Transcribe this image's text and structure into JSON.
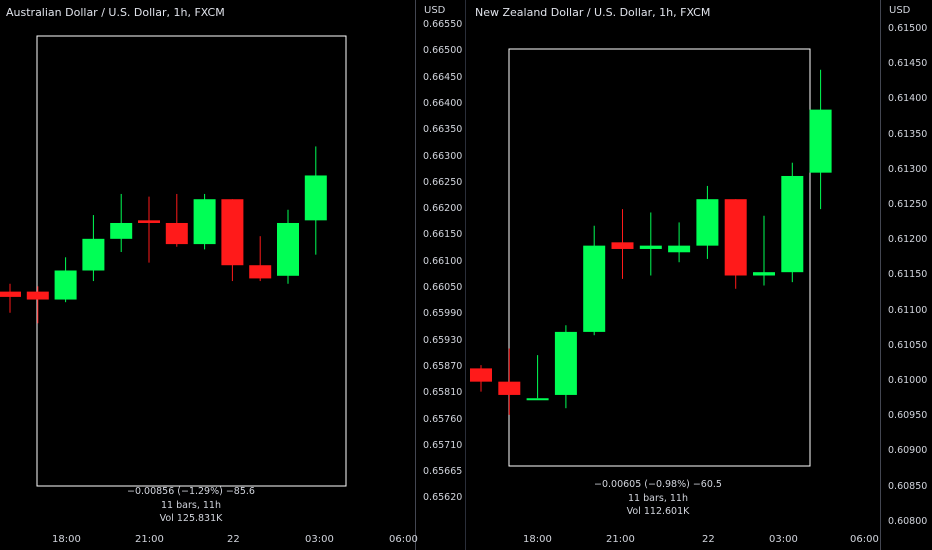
{
  "colors": {
    "up": "#00ff55",
    "down": "#ff1a1a",
    "range_box": "#ffffff",
    "background": "#000000"
  },
  "left_chart": {
    "title": "Australian Dollar / U.S. Dollar, 1h, FXCM",
    "currency": "USD",
    "price_ticks": [
      "0.66550",
      "0.66500",
      "0.66450",
      "0.66400",
      "0.66350",
      "0.66300",
      "0.66250",
      "0.66200",
      "0.66150",
      "0.66100",
      "0.66050",
      "0.65990",
      "0.65930",
      "0.65870",
      "0.65810",
      "0.65760",
      "0.65710",
      "0.65665",
      "0.65620"
    ],
    "time_ticks": [
      "18:00",
      "21:00",
      "22",
      "03:00",
      "06:00"
    ],
    "range_stats": {
      "change": "−0.00856 (−1.29%) −85.6",
      "bars": "11 bars, 11h",
      "volume": "Vol 125.831K"
    }
  },
  "right_chart": {
    "title": "New Zealand Dollar / U.S. Dollar, 1h, FXCM",
    "currency": "USD",
    "price_ticks": [
      "0.61500",
      "0.61450",
      "0.61400",
      "0.61350",
      "0.61300",
      "0.61250",
      "0.61200",
      "0.61150",
      "0.61100",
      "0.61050",
      "0.61000",
      "0.60950",
      "0.60900",
      "0.60850",
      "0.60800"
    ],
    "time_ticks": [
      "18:00",
      "21:00",
      "22",
      "03:00",
      "06:00"
    ],
    "range_stats": {
      "change": "−0.00605 (−0.98%) −60.5",
      "bars": "11 bars, 11h",
      "volume": "Vol 112.601K"
    }
  },
  "chart_data": [
    {
      "type": "candlestick",
      "title": "Australian Dollar / U.S. Dollar, 1h, FXCM",
      "ylabel": "USD",
      "ylim": [
        0.6562,
        0.6655
      ],
      "candles": [
        {
          "o": 0.66045,
          "h": 0.6606,
          "l": 0.66005,
          "c": 0.66035
        },
        {
          "o": 0.66045,
          "h": 0.66055,
          "l": 0.65985,
          "c": 0.6603
        },
        {
          "o": 0.6603,
          "h": 0.6611,
          "l": 0.66025,
          "c": 0.66085
        },
        {
          "o": 0.66085,
          "h": 0.6619,
          "l": 0.66065,
          "c": 0.66145
        },
        {
          "o": 0.66145,
          "h": 0.6623,
          "l": 0.6612,
          "c": 0.66175
        },
        {
          "o": 0.6618,
          "h": 0.66225,
          "l": 0.661,
          "c": 0.66175
        },
        {
          "o": 0.66175,
          "h": 0.6623,
          "l": 0.6613,
          "c": 0.66135
        },
        {
          "o": 0.66135,
          "h": 0.6623,
          "l": 0.66125,
          "c": 0.6622
        },
        {
          "o": 0.6622,
          "h": 0.6622,
          "l": 0.66065,
          "c": 0.66095
        },
        {
          "o": 0.66095,
          "h": 0.6615,
          "l": 0.66065,
          "c": 0.6607
        },
        {
          "o": 0.66075,
          "h": 0.662,
          "l": 0.6606,
          "c": 0.66175
        },
        {
          "o": 0.6618,
          "h": 0.6632,
          "l": 0.66115,
          "c": 0.66265
        }
      ]
    },
    {
      "type": "candlestick",
      "title": "New Zealand Dollar / U.S. Dollar, 1h, FXCM",
      "ylabel": "USD",
      "ylim": [
        0.6078,
        0.6152
      ],
      "candles": [
        {
          "o": 0.6101,
          "h": 0.61015,
          "l": 0.60975,
          "c": 0.6099
        },
        {
          "o": 0.6099,
          "h": 0.6104,
          "l": 0.6094,
          "c": 0.6097
        },
        {
          "o": 0.60965,
          "h": 0.6103,
          "l": 0.60965,
          "c": 0.60965
        },
        {
          "o": 0.6097,
          "h": 0.61075,
          "l": 0.6095,
          "c": 0.61065
        },
        {
          "o": 0.61065,
          "h": 0.61225,
          "l": 0.6106,
          "c": 0.61195
        },
        {
          "o": 0.612,
          "h": 0.6125,
          "l": 0.61145,
          "c": 0.6119
        },
        {
          "o": 0.6119,
          "h": 0.61245,
          "l": 0.6115,
          "c": 0.61195
        },
        {
          "o": 0.61185,
          "h": 0.6123,
          "l": 0.6117,
          "c": 0.61195
        },
        {
          "o": 0.61195,
          "h": 0.61285,
          "l": 0.61175,
          "c": 0.61265
        },
        {
          "o": 0.61265,
          "h": 0.61265,
          "l": 0.6113,
          "c": 0.6115
        },
        {
          "o": 0.6115,
          "h": 0.6124,
          "l": 0.61135,
          "c": 0.61155
        },
        {
          "o": 0.61155,
          "h": 0.6132,
          "l": 0.6114,
          "c": 0.613
        },
        {
          "o": 0.61305,
          "h": 0.6146,
          "l": 0.6125,
          "c": 0.614
        }
      ]
    }
  ]
}
